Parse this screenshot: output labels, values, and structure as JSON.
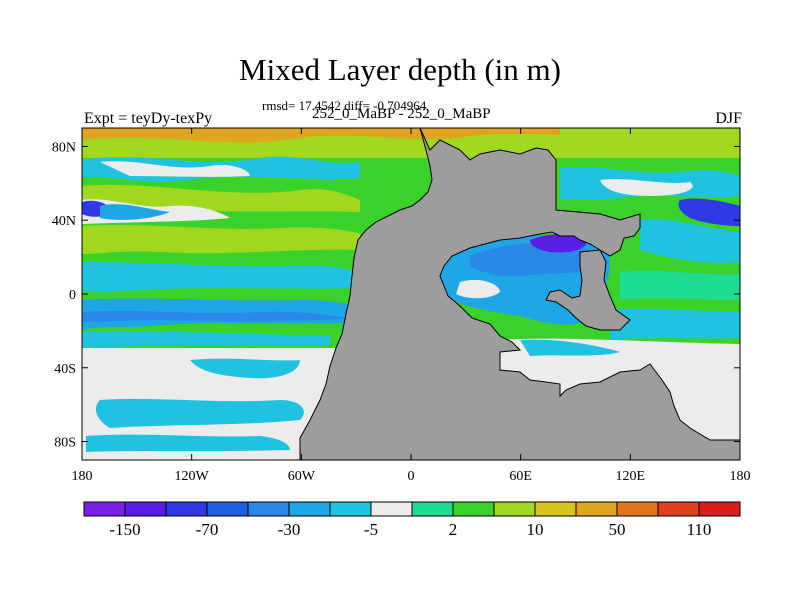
{
  "title": "Mixed Layer depth (in m)",
  "stats": "rmsd= 17.4542 diff= -0.704964",
  "subtitle": "252_0_MaBP - 252_0_MaBP",
  "left_label": "Expt = teyDy-texPy",
  "right_label": "DJF",
  "colors": {
    "land": "#9d9d9d",
    "zero_band": "#ececec"
  },
  "map": {
    "lon_range": [
      -180,
      180
    ],
    "lat_range": [
      -90,
      90
    ],
    "x_ticks": [
      {
        "value": -180,
        "label": "180"
      },
      {
        "value": -120,
        "label": "120W"
      },
      {
        "value": -60,
        "label": "60W"
      },
      {
        "value": 0,
        "label": "0"
      },
      {
        "value": 60,
        "label": "60E"
      },
      {
        "value": 120,
        "label": "120E"
      },
      {
        "value": 180,
        "label": "180"
      }
    ],
    "y_ticks": [
      {
        "value": 80,
        "label": "80N"
      },
      {
        "value": 40,
        "label": "40N"
      },
      {
        "value": 0,
        "label": "0"
      },
      {
        "value": -40,
        "label": "40S"
      },
      {
        "value": -80,
        "label": "80S"
      }
    ]
  },
  "colorbar": {
    "colors": [
      "#7a1fe6",
      "#5a1de6",
      "#2f39e6",
      "#1f5fe0",
      "#2a88e8",
      "#1fa6e6",
      "#1fc3e0",
      "#ececec",
      "#1fdc94",
      "#3ad12a",
      "#9fd81f",
      "#d8c41f",
      "#e0a51f",
      "#e2761f",
      "#e0401f",
      "#d81f1f"
    ],
    "labels": [
      {
        "after_box": 1,
        "text": "-150"
      },
      {
        "after_box": 3,
        "text": "-70"
      },
      {
        "after_box": 5,
        "text": "-30"
      },
      {
        "after_box": 7,
        "text": "-5"
      },
      {
        "after_box": 9,
        "text": "2"
      },
      {
        "after_box": 11,
        "text": "10"
      },
      {
        "after_box": 13,
        "text": "50"
      },
      {
        "after_box": 15,
        "text": "110"
      }
    ]
  }
}
